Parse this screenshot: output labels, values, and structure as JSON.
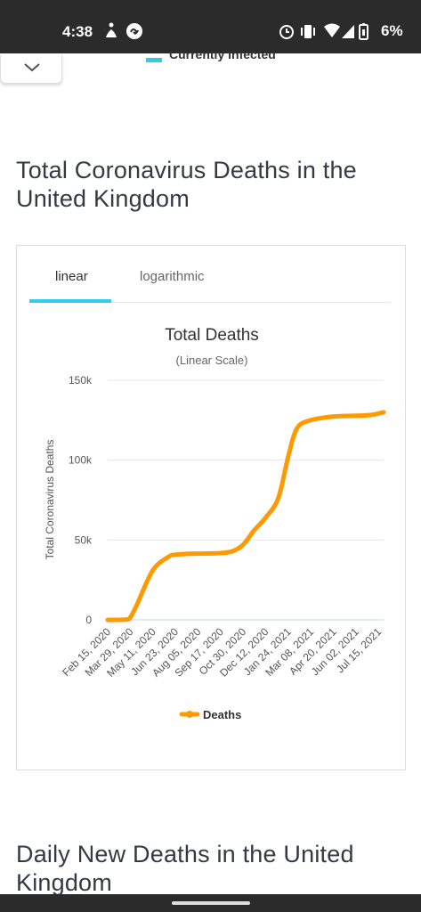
{
  "status_bar": {
    "time": "4:38",
    "battery": "6%"
  },
  "previous_chart": {
    "legend_label": "Currently Infected"
  },
  "section1": {
    "title": "Total Coronavirus Deaths in the United Kingdom"
  },
  "section2": {
    "title": "Daily New Deaths in the United Kingdom"
  },
  "tabs": [
    {
      "label": "linear",
      "active": true
    },
    {
      "label": "logarithmic",
      "active": false
    }
  ],
  "colors": {
    "accent": "#33ccee",
    "series": "#ff9900",
    "status_bar": "#2b2b2b"
  },
  "chart_data": {
    "type": "line",
    "title": "Total Deaths",
    "subtitle": "(Linear Scale)",
    "ylabel": "Total Coronavirus Deaths",
    "xlabel": "",
    "ylim": [
      0,
      150000
    ],
    "yticks": [
      0,
      50000,
      100000,
      150000
    ],
    "ytick_labels": [
      "0",
      "50k",
      "100k",
      "150k"
    ],
    "xtick_labels": [
      "Feb 15, 2020",
      "Mar 29, 2020",
      "May 11, 2020",
      "Jun 23, 2020",
      "Aug 05, 2020",
      "Sep 17, 2020",
      "Oct 30, 2020",
      "Dec 12, 2020",
      "Jan 24, 2021",
      "Mar 08, 2021",
      "Apr 20, 2021",
      "Jun 02, 2021",
      "Jul 15, 2021"
    ],
    "grid": true,
    "legend": "bottom",
    "series": [
      {
        "name": "Deaths",
        "x": [
          "Feb 15, 2020",
          "Mar 20, 2020",
          "Mar 29, 2020",
          "Apr 10, 2020",
          "May 11, 2020",
          "Jun 10, 2020",
          "Jun 23, 2020",
          "Jul 15, 2020",
          "Aug 05, 2020",
          "Sep 17, 2020",
          "Oct 10, 2020",
          "Oct 30, 2020",
          "Nov 20, 2020",
          "Dec 12, 2020",
          "Jan 05, 2021",
          "Jan 24, 2021",
          "Feb 10, 2021",
          "Mar 08, 2021",
          "Apr 20, 2021",
          "Jun 02, 2021",
          "Jul 01, 2021",
          "Jul 25, 2021"
        ],
        "values": [
          0,
          200,
          1500,
          9000,
          31000,
          39500,
          40800,
          41300,
          41500,
          41800,
          43000,
          47000,
          56000,
          64000,
          76000,
          102000,
          120000,
          125000,
          127300,
          127800,
          128300,
          130000
        ]
      }
    ]
  }
}
